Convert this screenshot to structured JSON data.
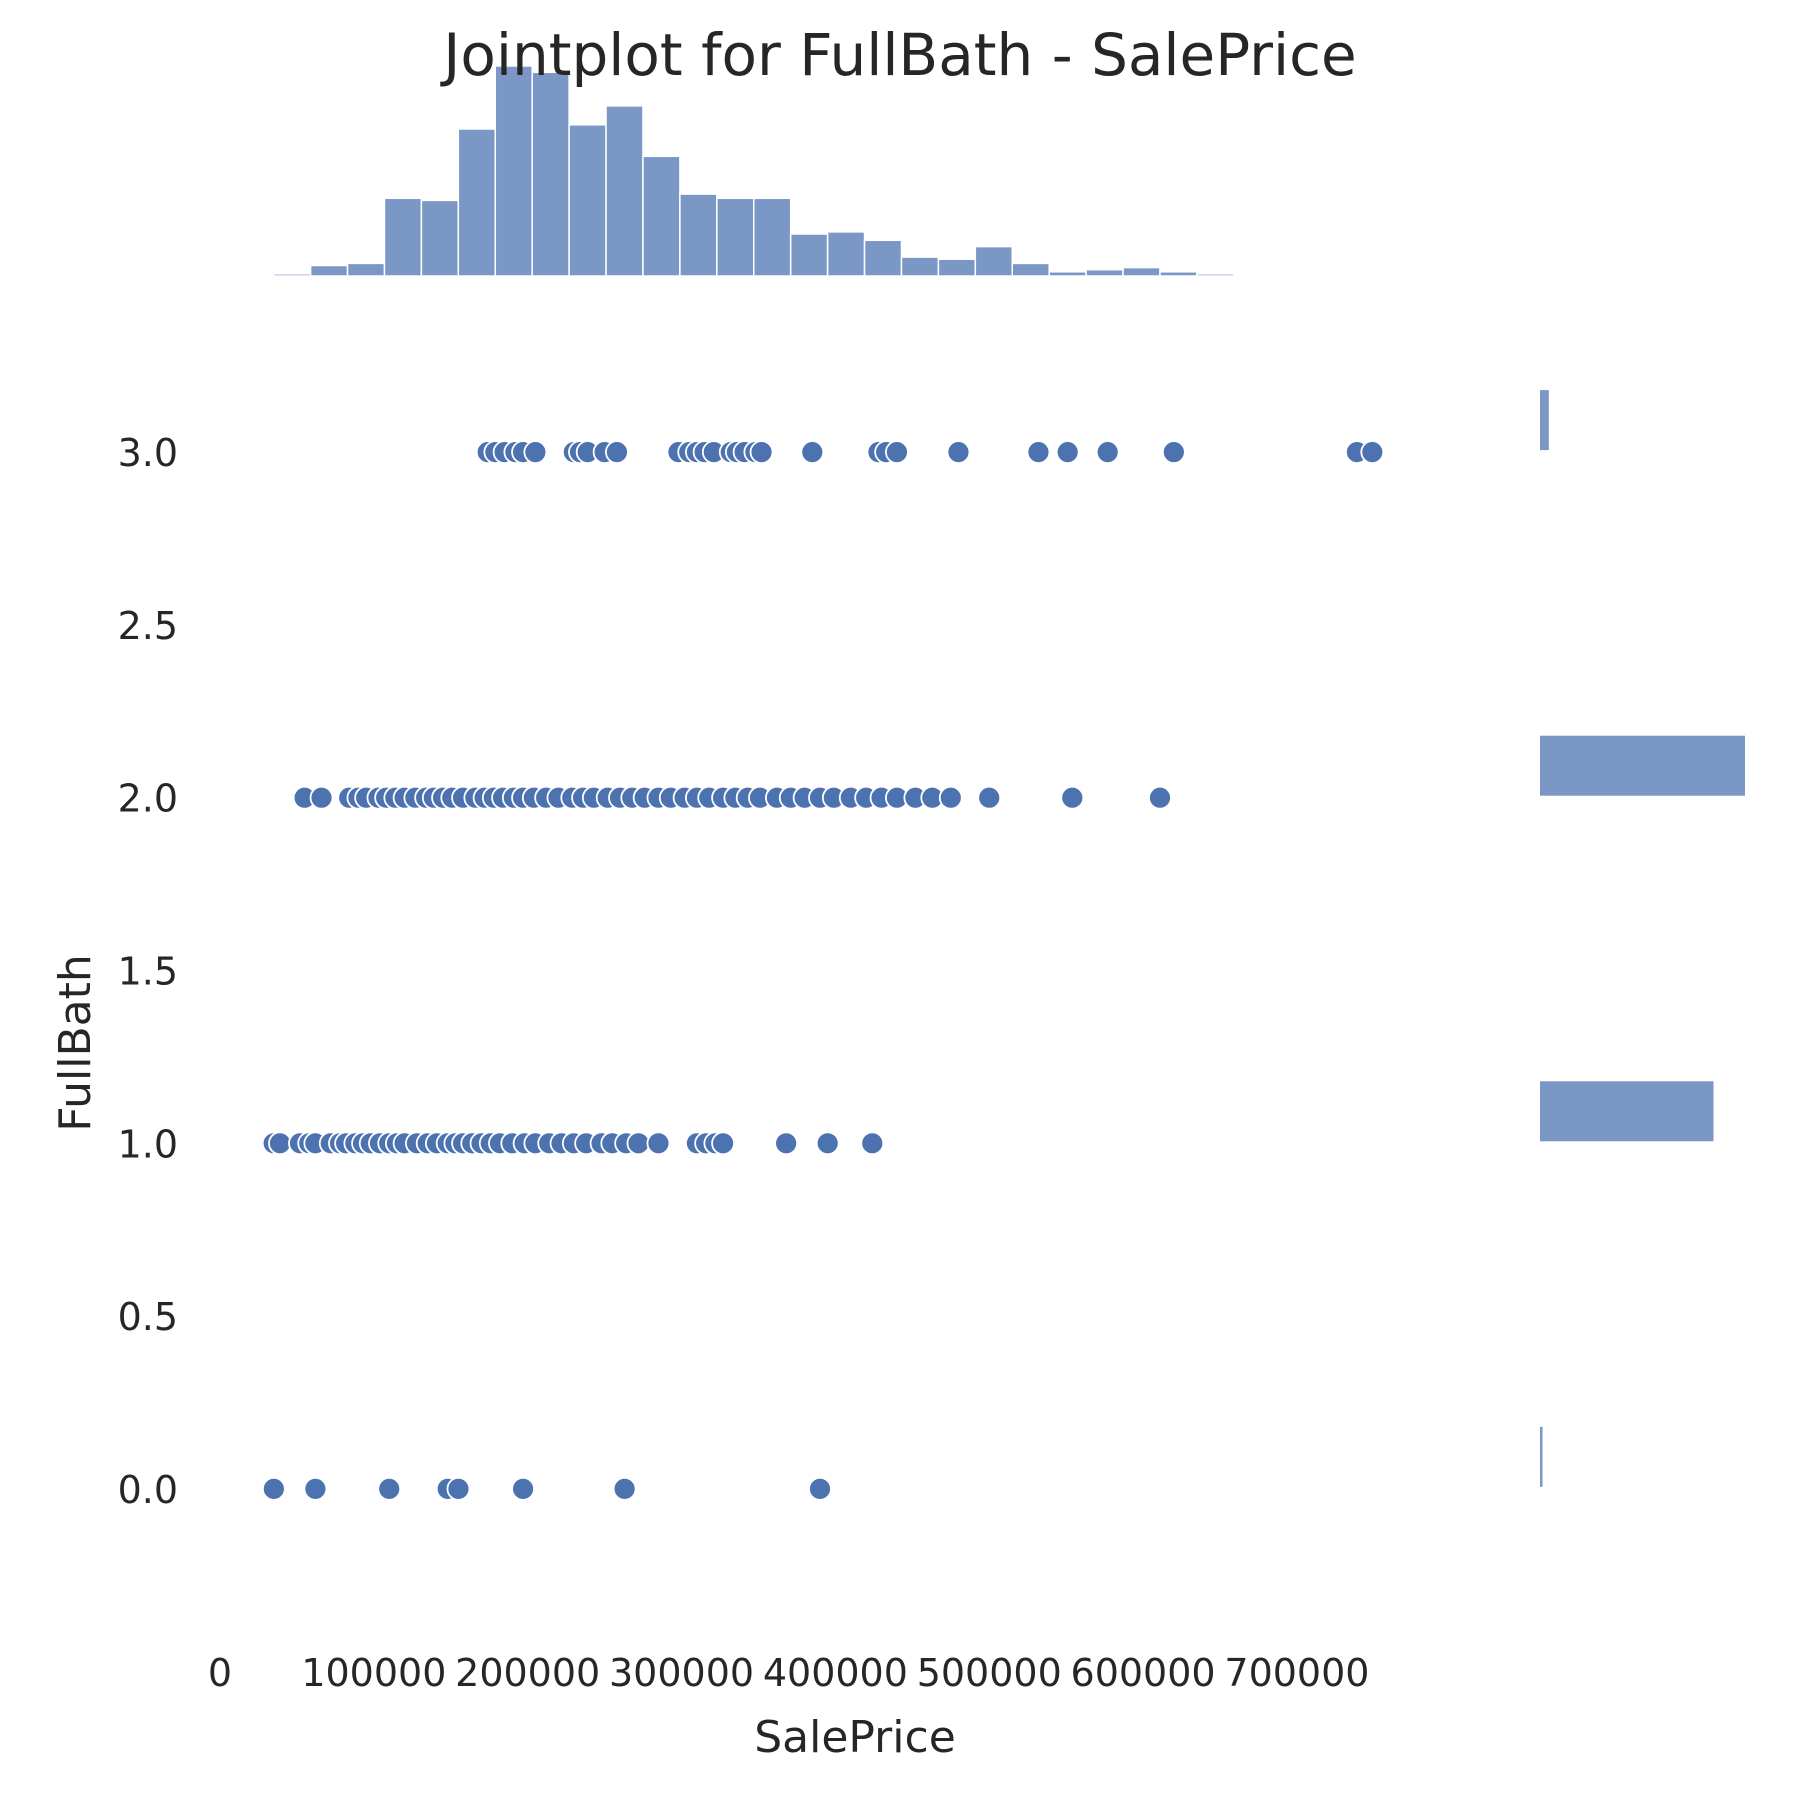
{
  "chart_data": {
    "type": "scatter",
    "title": "Jointplot for FullBath - SalePrice",
    "xlabel": "SalePrice",
    "ylabel": "FullBath",
    "xlim": [
      0,
      780000
    ],
    "ylim": [
      -0.2,
      3.2
    ],
    "x_ticks": [
      0,
      100000,
      200000,
      300000,
      400000,
      500000,
      600000,
      700000
    ],
    "y_ticks": [
      "0.0",
      "0.5",
      "1.0",
      "1.5",
      "2.0",
      "2.5",
      "3.0"
    ],
    "grid": false,
    "color": "#4c72b0",
    "hist_color": "#7a97c6",
    "series": [
      {
        "y": 3,
        "x": [
          174000,
          179000,
          185000,
          192000,
          197000,
          205000,
          230000,
          234000,
          239000,
          250000,
          258000,
          298000,
          305000,
          310000,
          315000,
          321000,
          332000,
          336000,
          341000,
          348000,
          352000,
          385000,
          428000,
          433000,
          440000,
          480000,
          532000,
          551000,
          577000,
          620000,
          739000,
          749000
        ]
      },
      {
        "y": 2,
        "x": [
          55000,
          66000,
          84000,
          90000,
          95000,
          103000,
          108000,
          114000,
          120000,
          127000,
          134000,
          139000,
          145000,
          151000,
          158000,
          166000,
          172000,
          178000,
          184000,
          191000,
          197000,
          204000,
          212000,
          220000,
          229000,
          236000,
          243000,
          252000,
          260000,
          268000,
          276000,
          285000,
          293000,
          302000,
          310000,
          318000,
          327000,
          335000,
          343000,
          351000,
          362000,
          371000,
          380000,
          390000,
          399000,
          410000,
          420000,
          430000,
          440000,
          452000,
          463000,
          475000,
          500000,
          554000,
          611000
        ]
      },
      {
        "y": 1,
        "x": [
          34900,
          39000,
          52000,
          58000,
          62000,
          72000,
          78000,
          82000,
          88000,
          93000,
          98000,
          104000,
          110000,
          115000,
          120000,
          128000,
          135000,
          141000,
          148000,
          153000,
          158000,
          164000,
          170000,
          176000,
          182000,
          190000,
          198000,
          205000,
          214000,
          222000,
          230000,
          238000,
          248000,
          255000,
          264000,
          272000,
          285000,
          310000,
          316000,
          322000,
          327000,
          368000,
          395000,
          424000
        ]
      },
      {
        "y": 0,
        "x": [
          35000,
          62000,
          110000,
          148000,
          155000,
          197000,
          263000,
          390000
        ]
      }
    ],
    "x_hist": [
      0.01,
      0.05,
      0.06,
      0.37,
      0.36,
      0.7,
      1.0,
      0.97,
      0.72,
      0.81,
      0.57,
      0.39,
      0.37,
      0.37,
      0.2,
      0.21,
      0.17,
      0.09,
      0.08,
      0.14,
      0.06,
      0.02,
      0.03,
      0.04,
      0.02,
      0.01,
      0.005,
      0.005,
      0.0,
      0.003
    ],
    "x_hist_range": [
      34900,
      755000
    ],
    "y_hist": [
      {
        "y": 3,
        "count": 33
      },
      {
        "y": 2,
        "count": 768
      },
      {
        "y": 1,
        "count": 650
      },
      {
        "y": 0,
        "count": 9
      }
    ]
  }
}
